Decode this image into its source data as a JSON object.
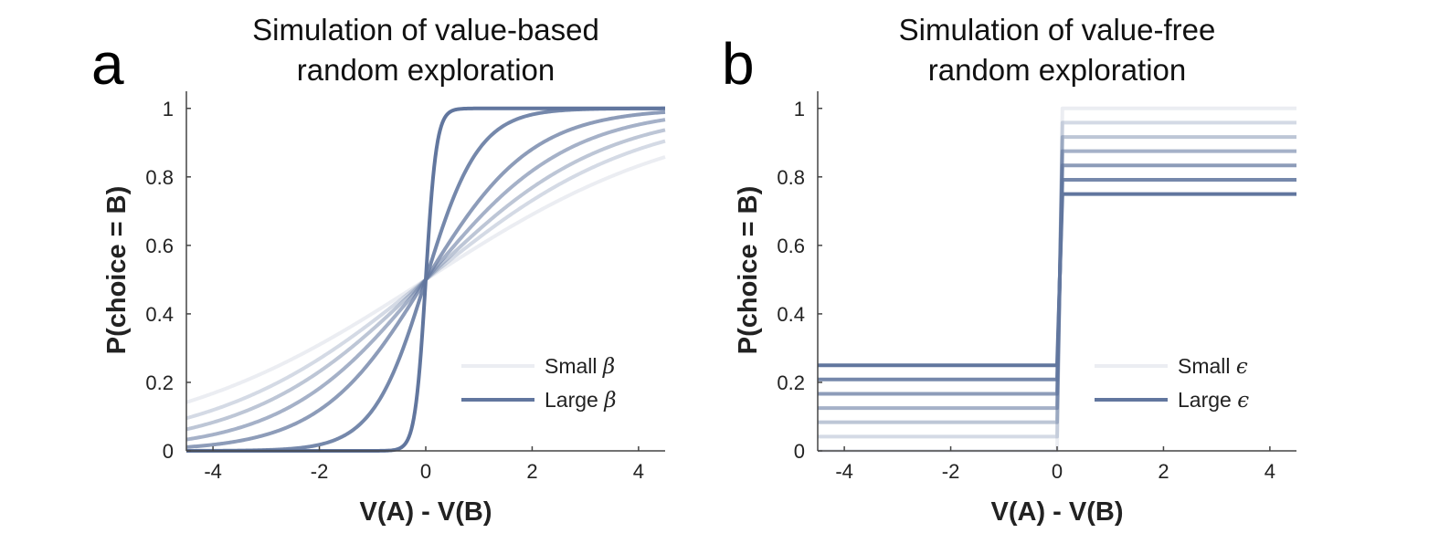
{
  "chart_data": [
    {
      "panel": "a",
      "type": "line",
      "title_line1": "Simulation of value-based",
      "title_line2": "random exploration",
      "xlabel": "V(A) - V(B)",
      "ylabel": "P(choice = B)",
      "xlim": [
        -4.5,
        4.5
      ],
      "ylim": [
        0,
        1.05
      ],
      "xticks": [
        "-4",
        "-2",
        "0",
        "2",
        "4"
      ],
      "yticks": [
        "0",
        "0.2",
        "0.4",
        "0.6",
        "0.8",
        "1"
      ],
      "function": "softmax P = 1 / (1 + exp(-beta * x))",
      "series": [
        {
          "beta": 0.4,
          "opacity": 0.13
        },
        {
          "beta": 0.5,
          "opacity": 0.27
        },
        {
          "beta": 0.6,
          "opacity": 0.42
        },
        {
          "beta": 0.75,
          "opacity": 0.57
        },
        {
          "beta": 1.0,
          "opacity": 0.72
        },
        {
          "beta": 2.0,
          "opacity": 0.87
        },
        {
          "beta": 10.0,
          "opacity": 1.0
        }
      ],
      "legend": {
        "position": "bottom-right",
        "small_label": "Small",
        "large_label": "Large",
        "symbol": "β"
      }
    },
    {
      "panel": "b",
      "type": "line",
      "title_line1": "Simulation of value-free",
      "title_line2": "random exploration",
      "xlabel": "V(A) - V(B)",
      "ylabel": "P(choice = B)",
      "xlim": [
        -4.5,
        4.5
      ],
      "ylim": [
        0,
        1.05
      ],
      "xticks": [
        "-4",
        "-2",
        "0",
        "2",
        "4"
      ],
      "yticks": [
        "0",
        "0.2",
        "0.4",
        "0.6",
        "0.8",
        "1"
      ],
      "function": "epsilon-greedy step at x = 0: P = eps/2 for x < 0, 1 - eps/2 for x > 0",
      "series": [
        {
          "epsilon": 0.0,
          "opacity": 0.13
        },
        {
          "epsilon": 0.083,
          "opacity": 0.27
        },
        {
          "epsilon": 0.167,
          "opacity": 0.42
        },
        {
          "epsilon": 0.25,
          "opacity": 0.57
        },
        {
          "epsilon": 0.333,
          "opacity": 0.72
        },
        {
          "epsilon": 0.417,
          "opacity": 0.87
        },
        {
          "epsilon": 0.5,
          "opacity": 1.0
        }
      ],
      "legend": {
        "position": "bottom-right",
        "small_label": "Small",
        "large_label": "Large",
        "symbol": "ϵ"
      }
    }
  ],
  "line_color": "#61769e"
}
